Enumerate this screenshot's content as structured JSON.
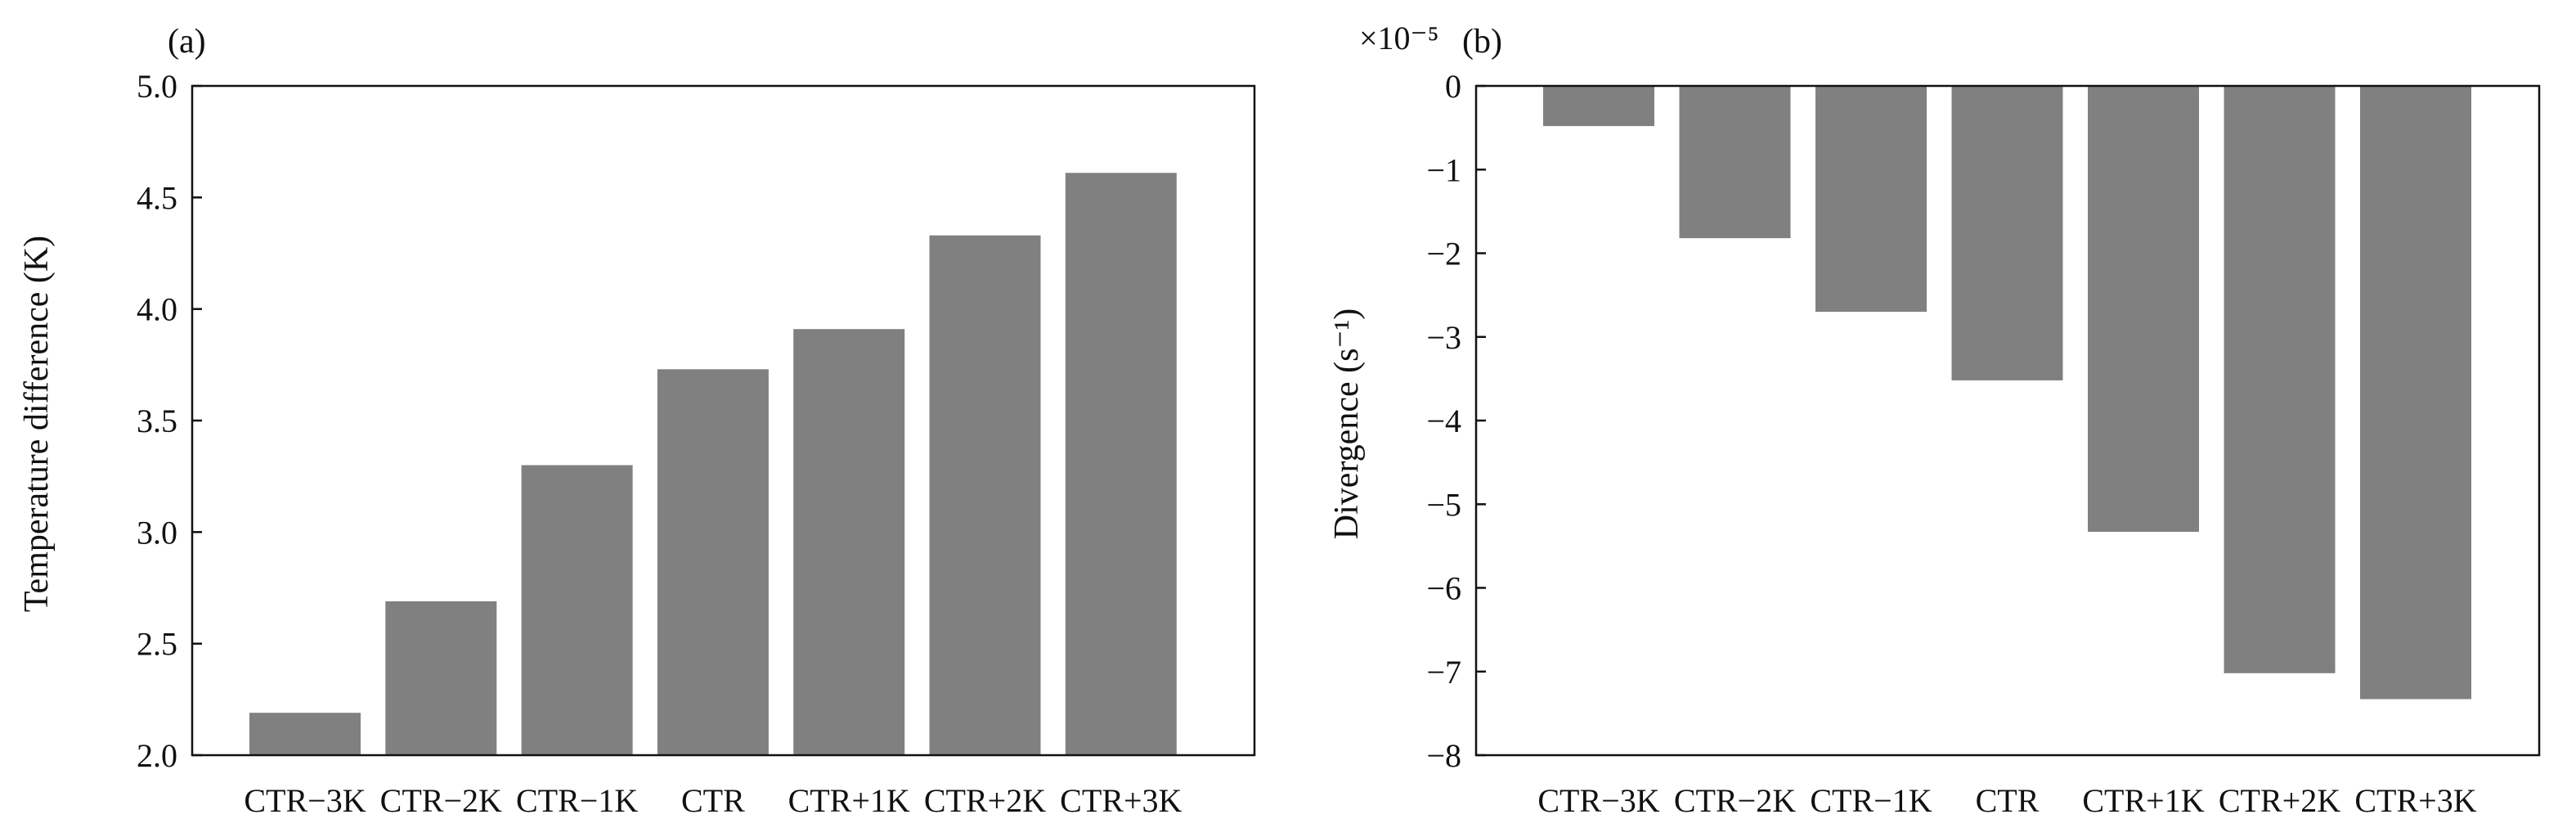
{
  "chart_data": [
    {
      "type": "bar",
      "panel_label": "(a)",
      "categories": [
        "CTR−3K",
        "CTR−2K",
        "CTR−1K",
        "CTR",
        "CTR+1K",
        "CTR+2K",
        "CTR+3K"
      ],
      "values": [
        2.19,
        2.69,
        3.3,
        3.73,
        3.91,
        4.33,
        4.61
      ],
      "xlabel": "",
      "ylabel": "Temperature difference (K)",
      "ylim": [
        2.0,
        5.0
      ],
      "yticks": [
        "2.0",
        "2.5",
        "3.0",
        "3.5",
        "4.0",
        "4.5",
        "5.0"
      ],
      "bar_color": "#808080",
      "grid": false
    },
    {
      "type": "bar",
      "panel_label": "(b)",
      "categories": [
        "CTR−3K",
        "CTR−2K",
        "CTR−1K",
        "CTR",
        "CTR+1K",
        "CTR+2K",
        "CTR+3K"
      ],
      "values": [
        -0.48,
        -1.82,
        -2.7,
        -3.52,
        -5.33,
        -7.02,
        -7.33
      ],
      "xlabel": "",
      "ylabel": "Divergence (s⁻¹)",
      "scale_label": "×10⁻⁵",
      "ylim": [
        -8,
        0
      ],
      "yticks": [
        "−8",
        "−7",
        "−6",
        "−5",
        "−4",
        "−3",
        "−2",
        "−1",
        "0"
      ],
      "bar_color": "#808080",
      "grid": false
    }
  ]
}
